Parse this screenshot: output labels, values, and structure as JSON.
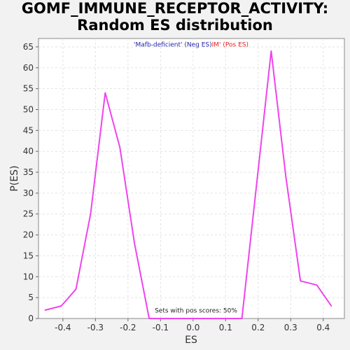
{
  "chart_data": {
    "type": "line",
    "title_lines": [
      "GOMF_IMMUNE_RECEPTOR_ACTIVITY:",
      "Random ES distribution"
    ],
    "xlabel": "ES",
    "ylabel": "P(ES)",
    "xlim": [
      -0.475,
      0.465
    ],
    "ylim": [
      0,
      67
    ],
    "xticks": [
      -0.4,
      -0.3,
      -0.2,
      -0.1,
      0.0,
      0.1,
      0.2,
      0.3,
      0.4
    ],
    "xtick_labels": [
      "-0.4",
      "-0.3",
      "-0.2",
      "-0.1",
      "0.0",
      "0.1",
      "0.2",
      "0.3",
      "0.4"
    ],
    "yticks": [
      0,
      5,
      10,
      15,
      20,
      25,
      30,
      35,
      40,
      45,
      50,
      55,
      60,
      65
    ],
    "ytick_labels": [
      "0",
      "5",
      "10",
      "15",
      "20",
      "25",
      "30",
      "35",
      "40",
      "45",
      "50",
      "55",
      "60",
      "65"
    ],
    "grid": true,
    "legend": {
      "placement": "top-center",
      "neg_text": "'Mafb-deficient' (Neg ES)",
      "pos_text": "IM' (Pos ES)",
      "neg_color": "#2222aa",
      "pos_color": "#dd2222"
    },
    "annotation": "Sets with pos scores: 50%",
    "series": [
      {
        "color": "#ee44ee",
        "x": [
          -0.455,
          -0.405,
          -0.36,
          -0.315,
          -0.27,
          -0.225,
          -0.18,
          -0.135,
          -0.09,
          -0.045,
          0.0,
          0.05,
          0.1,
          0.15,
          0.195,
          0.24,
          0.285,
          0.33,
          0.38,
          0.425
        ],
        "y": [
          2,
          3,
          7,
          25,
          54,
          41,
          18,
          0,
          0,
          0,
          0,
          0,
          0,
          0,
          32,
          64,
          34,
          9,
          8,
          3
        ]
      }
    ]
  }
}
